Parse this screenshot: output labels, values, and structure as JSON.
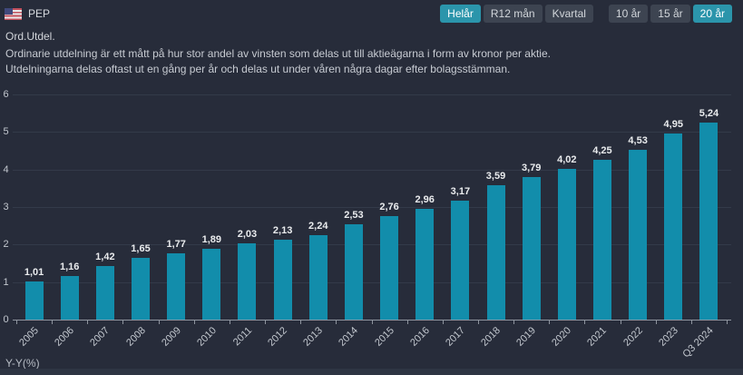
{
  "header": {
    "ticker": "PEP",
    "flag": "us-flag",
    "period_buttons": [
      {
        "label": "Helår",
        "active": true
      },
      {
        "label": "R12 mån",
        "active": false
      },
      {
        "label": "Kvartal",
        "active": false
      }
    ],
    "range_buttons": [
      {
        "label": "10 år",
        "active": false
      },
      {
        "label": "15 år",
        "active": false
      },
      {
        "label": "20 år",
        "active": true
      }
    ]
  },
  "metric": {
    "title": "Ord.Utdel.",
    "description_line1": "Ordinarie utdelning är ett mått på hur stor andel av vinsten som delas ut till aktieägarna i form av kronor per aktie.",
    "description_line2": "Utdelningarna delas oftast ut en gång per år och delas ut under våren några dagar efter bolagsstämman."
  },
  "chart_data": {
    "type": "bar",
    "title": "Ord.Utdel.",
    "xlabel": "",
    "ylabel": "",
    "categories": [
      "2005",
      "2006",
      "2007",
      "2008",
      "2009",
      "2010",
      "2011",
      "2012",
      "2013",
      "2014",
      "2015",
      "2016",
      "2017",
      "2018",
      "2019",
      "2020",
      "2021",
      "2022",
      "2023",
      "Q3 2024"
    ],
    "values": [
      1.01,
      1.16,
      1.42,
      1.65,
      1.77,
      1.89,
      2.03,
      2.13,
      2.24,
      2.53,
      2.76,
      2.96,
      3.17,
      3.59,
      3.79,
      4.02,
      4.25,
      4.53,
      4.95,
      5.24
    ],
    "value_labels": [
      "1,01",
      "1,16",
      "1,42",
      "1,65",
      "1,77",
      "1,89",
      "2,03",
      "2,13",
      "2,24",
      "2,53",
      "2,76",
      "2,96",
      "3,17",
      "3,59",
      "3,79",
      "4,02",
      "4,25",
      "4,53",
      "4,95",
      "5,24"
    ],
    "ylim": [
      0,
      6
    ],
    "yticks": [
      0,
      1,
      2,
      3,
      4,
      5,
      6
    ],
    "grid": true,
    "legend": "none",
    "bar_color": "#128dab"
  },
  "footer": {
    "next_section_label": "Y-Y(%)"
  },
  "colors": {
    "background": "#272c3a",
    "bar_teal": "#128dab",
    "button_active_bg": "#2b95ab",
    "button_bg": "#3d4451",
    "gridline": "#333a49",
    "axis": "#8f959f",
    "bottom_strip": "#2e3543"
  }
}
